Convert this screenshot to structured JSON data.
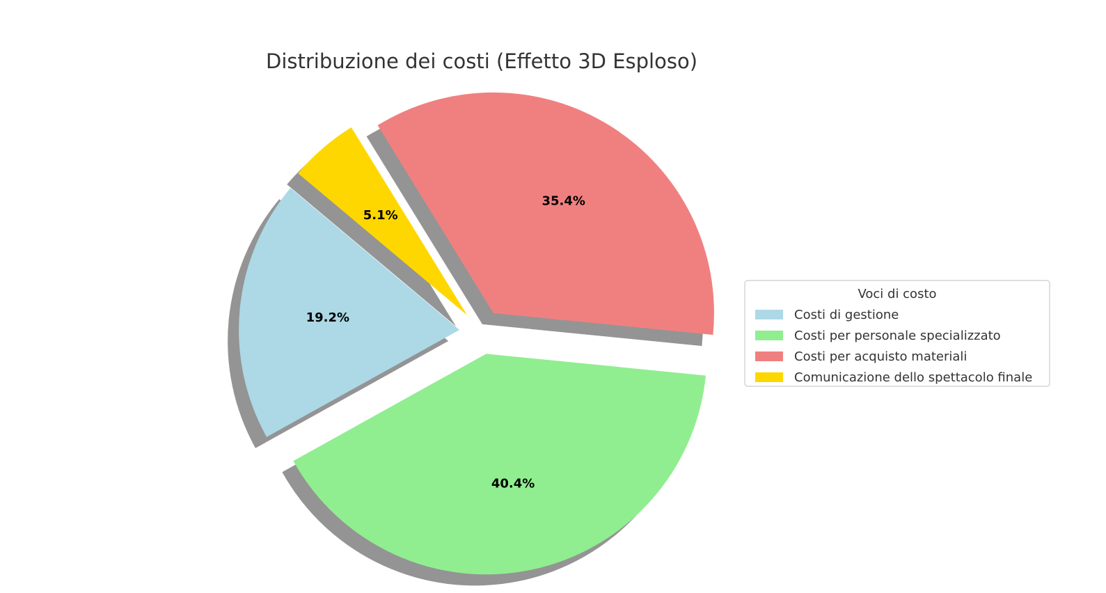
{
  "chart_data": {
    "type": "pie",
    "title": "Distribuzione dei costi (Effetto 3D Esploso)",
    "labels": [
      "Costi di gestione",
      "Costi per personale specializzato",
      "Costi per acquisto materiali",
      "Comunicazione dello spettacolo finale"
    ],
    "values": [
      19.2,
      40.4,
      35.4,
      5.1
    ],
    "value_labels": [
      "19.2%",
      "40.4%",
      "35.4%",
      "5.1%"
    ],
    "colors": [
      "#add8e6",
      "#90ee90",
      "#f08080",
      "#ffd700"
    ],
    "start_angle_deg": 140,
    "direction": "counterclockwise",
    "exploded": true,
    "shadow": true,
    "legend": {
      "title": "Voci di costo",
      "placement": "center-right"
    }
  }
}
